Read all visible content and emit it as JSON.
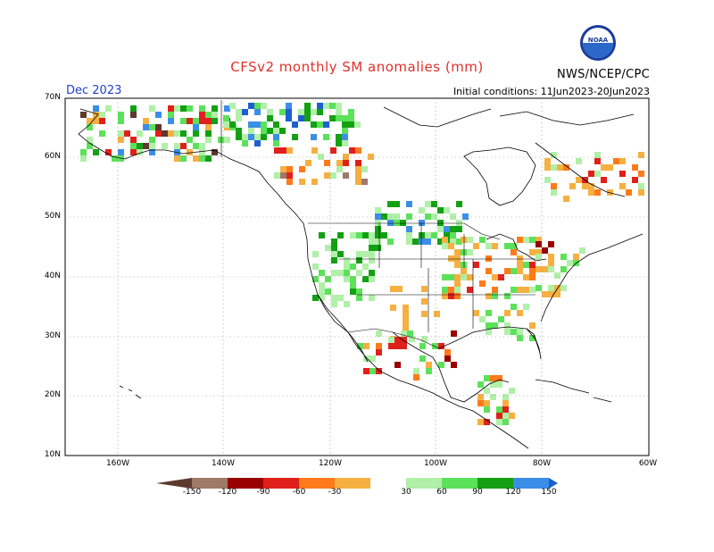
{
  "title": "CFSv2 monthly SM anomalies (mm)",
  "credit": "NWS/NCEP/CPC",
  "logo_text": "NOAA",
  "valid_month": "Dec 2023",
  "initial_conditions": "Initial conditions: 11Jun2023-20Jun2023",
  "latitude_labels": [
    "70N",
    "60N",
    "50N",
    "40N",
    "30N",
    "20N",
    "10N"
  ],
  "longitude_labels": [
    "160W",
    "140W",
    "120W",
    "100W",
    "80W",
    "60W"
  ],
  "colorbar": {
    "labels": [
      "-150",
      "-120",
      "-90",
      "-60",
      "-30",
      "30",
      "60",
      "90",
      "120",
      "150"
    ],
    "colors": [
      "#5c3a2e",
      "#a07a68",
      "#990000",
      "#e0201a",
      "#ff7a1a",
      "#f5b041",
      "#ffffff",
      "#b0f0a8",
      "#5ce15a",
      "#13a013",
      "#3b8ee8",
      "#1d5fd0"
    ]
  },
  "colors": {
    "coast": "#000000",
    "grid": "#9a9a9a"
  }
}
